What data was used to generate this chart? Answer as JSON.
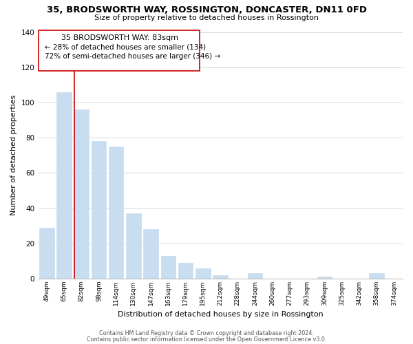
{
  "title": "35, BRODSWORTH WAY, ROSSINGTON, DONCASTER, DN11 0FD",
  "subtitle": "Size of property relative to detached houses in Rossington",
  "xlabel": "Distribution of detached houses by size in Rossington",
  "ylabel": "Number of detached properties",
  "bar_labels": [
    "49sqm",
    "65sqm",
    "82sqm",
    "98sqm",
    "114sqm",
    "130sqm",
    "147sqm",
    "163sqm",
    "179sqm",
    "195sqm",
    "212sqm",
    "228sqm",
    "244sqm",
    "260sqm",
    "277sqm",
    "293sqm",
    "309sqm",
    "325sqm",
    "342sqm",
    "358sqm",
    "374sqm"
  ],
  "bar_values": [
    29,
    106,
    96,
    78,
    75,
    37,
    28,
    13,
    9,
    6,
    2,
    0,
    3,
    0,
    0,
    0,
    1,
    0,
    0,
    3,
    0
  ],
  "bar_color": "#c8ddf0",
  "vline_x": 1.575,
  "annotation_title": "35 BRODSWORTH WAY: 83sqm",
  "annotation_line1": "← 28% of detached houses are smaller (134)",
  "annotation_line2": "72% of semi-detached houses are larger (346) →",
  "vline_color": "#cc0000",
  "annotation_box_edge": "#cc0000",
  "annotation_box_face": "#ffffff",
  "ylim": [
    0,
    140
  ],
  "yticks": [
    0,
    20,
    40,
    60,
    80,
    100,
    120,
    140
  ],
  "footer1": "Contains HM Land Registry data © Crown copyright and database right 2024.",
  "footer2": "Contains public sector information licensed under the Open Government Licence v3.0.",
  "bg_color": "#ffffff",
  "grid_color": "#d8d8d8"
}
